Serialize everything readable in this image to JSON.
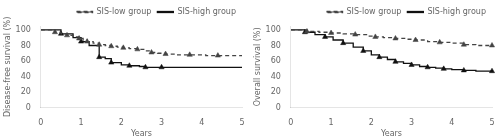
{
  "chart_data": [
    {
      "type": "step",
      "x_label": "Years",
      "y_label": "Disease-free survival (%)",
      "xlim": [
        0,
        5
      ],
      "ylim": [
        0,
        105
      ],
      "xticks": [
        0,
        1,
        2,
        3,
        4,
        5
      ],
      "yticks": [
        0,
        20,
        40,
        60,
        80,
        100
      ],
      "grid": false,
      "legend": "upper right",
      "series": [
        {
          "name": "SIS-low group",
          "color": "#444444",
          "line_style": "dashed",
          "x": [
            0,
            0.35,
            0.5,
            0.65,
            0.8,
            0.95,
            1.05,
            1.15,
            1.3,
            1.45,
            1.6,
            1.75,
            1.9,
            2.05,
            2.2,
            2.4,
            2.6,
            2.75,
            2.9,
            3.1,
            3.4,
            3.7,
            4.1,
            4.4,
            5.0
          ],
          "values": [
            100,
            97,
            95,
            93,
            91,
            89,
            87,
            85,
            83,
            81,
            80,
            79,
            78,
            77,
            76,
            75,
            73,
            71,
            70,
            69,
            68,
            68,
            67,
            67,
            67
          ]
        },
        {
          "type": "scatter",
          "color": "#444444",
          "marker": "triangle",
          "x": [
            0.35,
            0.65,
            0.95,
            1.15,
            1.45,
            1.75,
            2.05,
            2.4,
            2.75,
            3.1,
            3.7,
            4.4
          ],
          "values": [
            97,
            93,
            89,
            85,
            81,
            79,
            77,
            75,
            71,
            69,
            68,
            67
          ]
        },
        {
          "name": "SIS-high group",
          "color": "#111111",
          "line_style": "solid",
          "x": [
            0,
            0.5,
            0.8,
            1.0,
            1.2,
            1.45,
            1.6,
            1.75,
            2.0,
            2.2,
            2.45,
            2.6,
            3.0,
            5.0
          ],
          "values": [
            100,
            95,
            90,
            85,
            80,
            65,
            63,
            58,
            55,
            54,
            53,
            52,
            52,
            52
          ]
        },
        {
          "type": "scatter",
          "color": "#111111",
          "marker": "triangle",
          "x": [
            0.5,
            1.0,
            1.45,
            1.75,
            2.2,
            2.6,
            3.0
          ],
          "values": [
            95,
            85,
            65,
            58,
            54,
            52,
            52
          ]
        }
      ]
    },
    {
      "type": "step",
      "x_label": "Years",
      "y_label": "Overall survival (%)",
      "xlim": [
        0,
        5
      ],
      "ylim": [
        0,
        105
      ],
      "xticks": [
        0,
        1,
        2,
        3,
        4,
        5
      ],
      "yticks": [
        0,
        20,
        40,
        60,
        80,
        100
      ],
      "grid": false,
      "legend": "upper right",
      "series": [
        {
          "name": "SIS-low group",
          "color": "#444444",
          "line_style": "dashed",
          "x": [
            0,
            0.4,
            0.7,
            1.0,
            1.3,
            1.6,
            1.9,
            2.1,
            2.3,
            2.6,
            2.85,
            3.1,
            3.4,
            3.7,
            4.0,
            4.3,
            4.6,
            5.0
          ],
          "values": [
            100,
            98,
            97,
            96,
            95,
            94,
            92,
            91,
            90,
            89,
            88,
            87,
            85,
            84,
            83,
            81,
            80,
            80
          ]
        },
        {
          "type": "scatter",
          "color": "#444444",
          "marker": "triangle",
          "x": [
            0.4,
            1.0,
            1.6,
            2.1,
            2.6,
            3.1,
            3.7,
            4.3,
            5.0
          ],
          "values": [
            98,
            96,
            94,
            91,
            89,
            87,
            84,
            81,
            80
          ]
        },
        {
          "name": "SIS-high group",
          "color": "#111111",
          "line_style": "solid",
          "x": [
            0,
            0.35,
            0.6,
            0.85,
            1.05,
            1.3,
            1.55,
            1.8,
            2.0,
            2.2,
            2.4,
            2.6,
            2.8,
            3.0,
            3.2,
            3.4,
            3.6,
            3.8,
            4.0,
            4.3,
            4.6,
            5.0
          ],
          "values": [
            100,
            97,
            94,
            91,
            87,
            83,
            78,
            73,
            68,
            65,
            62,
            59,
            57,
            55,
            53,
            52,
            51,
            50,
            49,
            48,
            47,
            47
          ]
        },
        {
          "type": "scatter",
          "color": "#111111",
          "marker": "triangle",
          "x": [
            0.35,
            0.85,
            1.3,
            1.8,
            2.2,
            2.6,
            3.0,
            3.4,
            3.8,
            4.3,
            5.0
          ],
          "values": [
            97,
            91,
            83,
            73,
            65,
            59,
            55,
            52,
            50,
            48,
            47
          ]
        }
      ]
    }
  ]
}
